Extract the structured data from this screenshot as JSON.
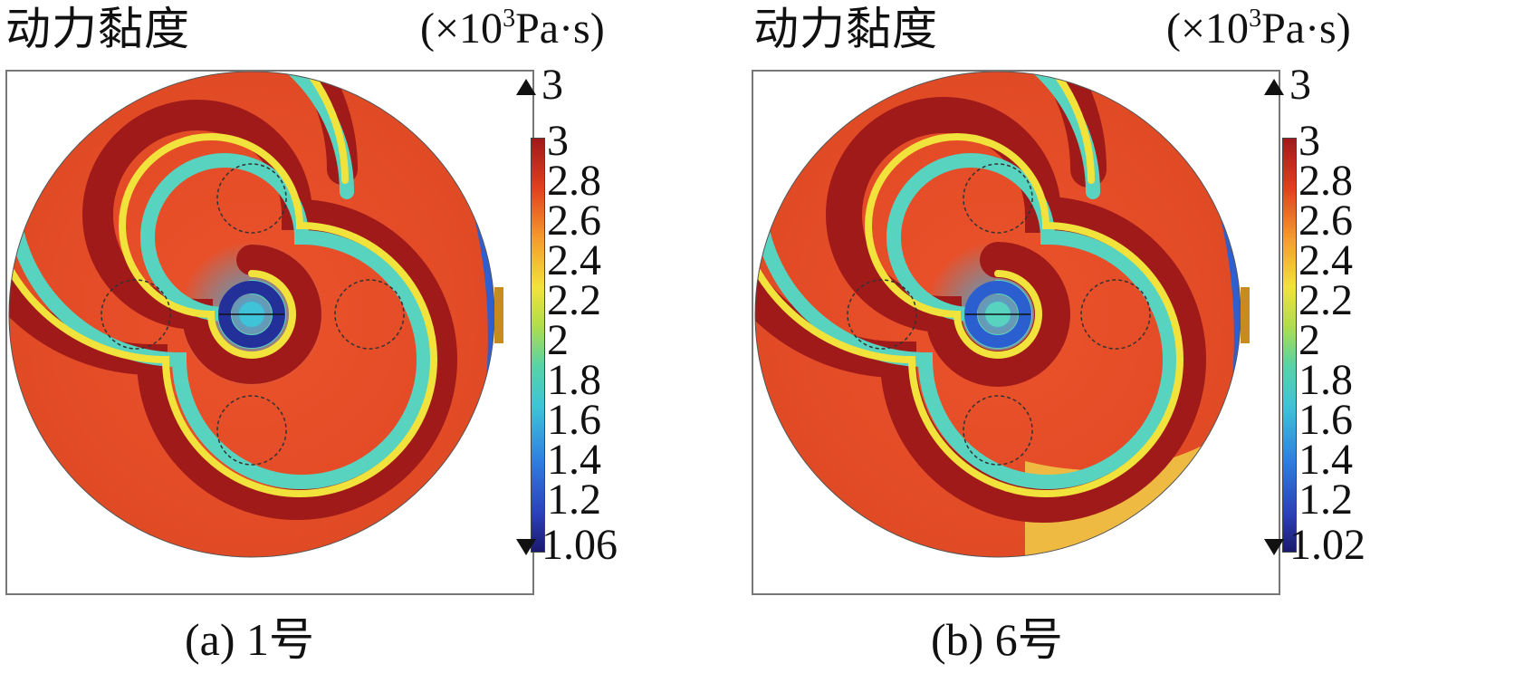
{
  "panels": [
    {
      "title": "动力黏度",
      "unit_prefix": "(×10",
      "unit_exp": "3",
      "unit_suffix": "Pa·s)",
      "max_label": "3",
      "min_label": "1.06",
      "colorbar_ticks": [
        "3",
        "2.8",
        "2.6",
        "2.4",
        "2.2",
        "2",
        "1.8",
        "1.6",
        "1.4",
        "1.2"
      ],
      "caption": "(a) 1号"
    },
    {
      "title": "动力黏度",
      "unit_prefix": "(×10",
      "unit_exp": "3",
      "unit_suffix": "Pa·s)",
      "max_label": "3",
      "min_label": "1.02",
      "colorbar_ticks": [
        "3",
        "2.8",
        "2.6",
        "2.4",
        "2.2",
        "2",
        "1.8",
        "1.6",
        "1.4",
        "1.2"
      ],
      "caption": "(b) 6号"
    }
  ],
  "colormap": [
    "#1a1a6e",
    "#2b3fb8",
    "#2f7fe0",
    "#3ec3d8",
    "#57d3a6",
    "#b2de4a",
    "#f2e23c",
    "#f59a2c",
    "#e0401f",
    "#a01a1a"
  ]
}
